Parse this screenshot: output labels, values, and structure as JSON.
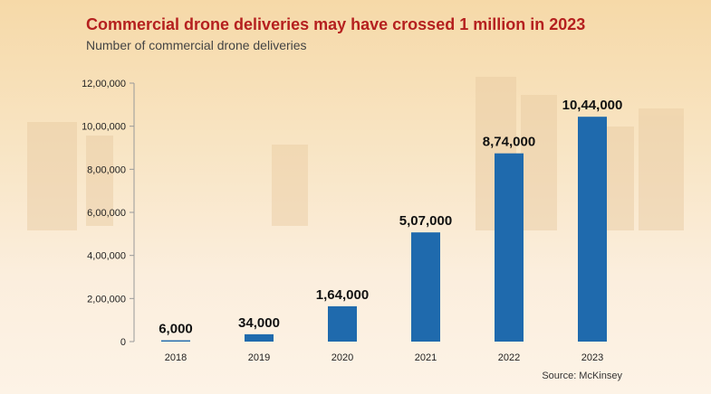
{
  "title": "Commercial drone deliveries may have crossed 1 million in 2023",
  "subtitle": "Number of commercial drone deliveries",
  "source": "Source: McKinsey",
  "colors": {
    "bar": "#1f6aad",
    "title": "#b5201f",
    "axis": "#999999"
  },
  "chart_data": {
    "type": "bar",
    "categories": [
      "2018",
      "2019",
      "2020",
      "2021",
      "2022",
      "2023"
    ],
    "values": [
      6000,
      34000,
      164000,
      507000,
      874000,
      1044000
    ],
    "data_labels": [
      "6,000",
      "34,000",
      "1,64,000",
      "5,07,000",
      "8,74,000",
      "10,44,000"
    ],
    "y_ticks": [
      0,
      200000,
      400000,
      600000,
      800000,
      1000000,
      1200000
    ],
    "y_tick_labels": [
      "0",
      "2,00,000",
      "4,00,000",
      "6,00,000",
      "8,00,000",
      "10,00,000",
      "12,00,000"
    ],
    "ylim": [
      0,
      1200000
    ],
    "grid": false,
    "legend": "none"
  }
}
